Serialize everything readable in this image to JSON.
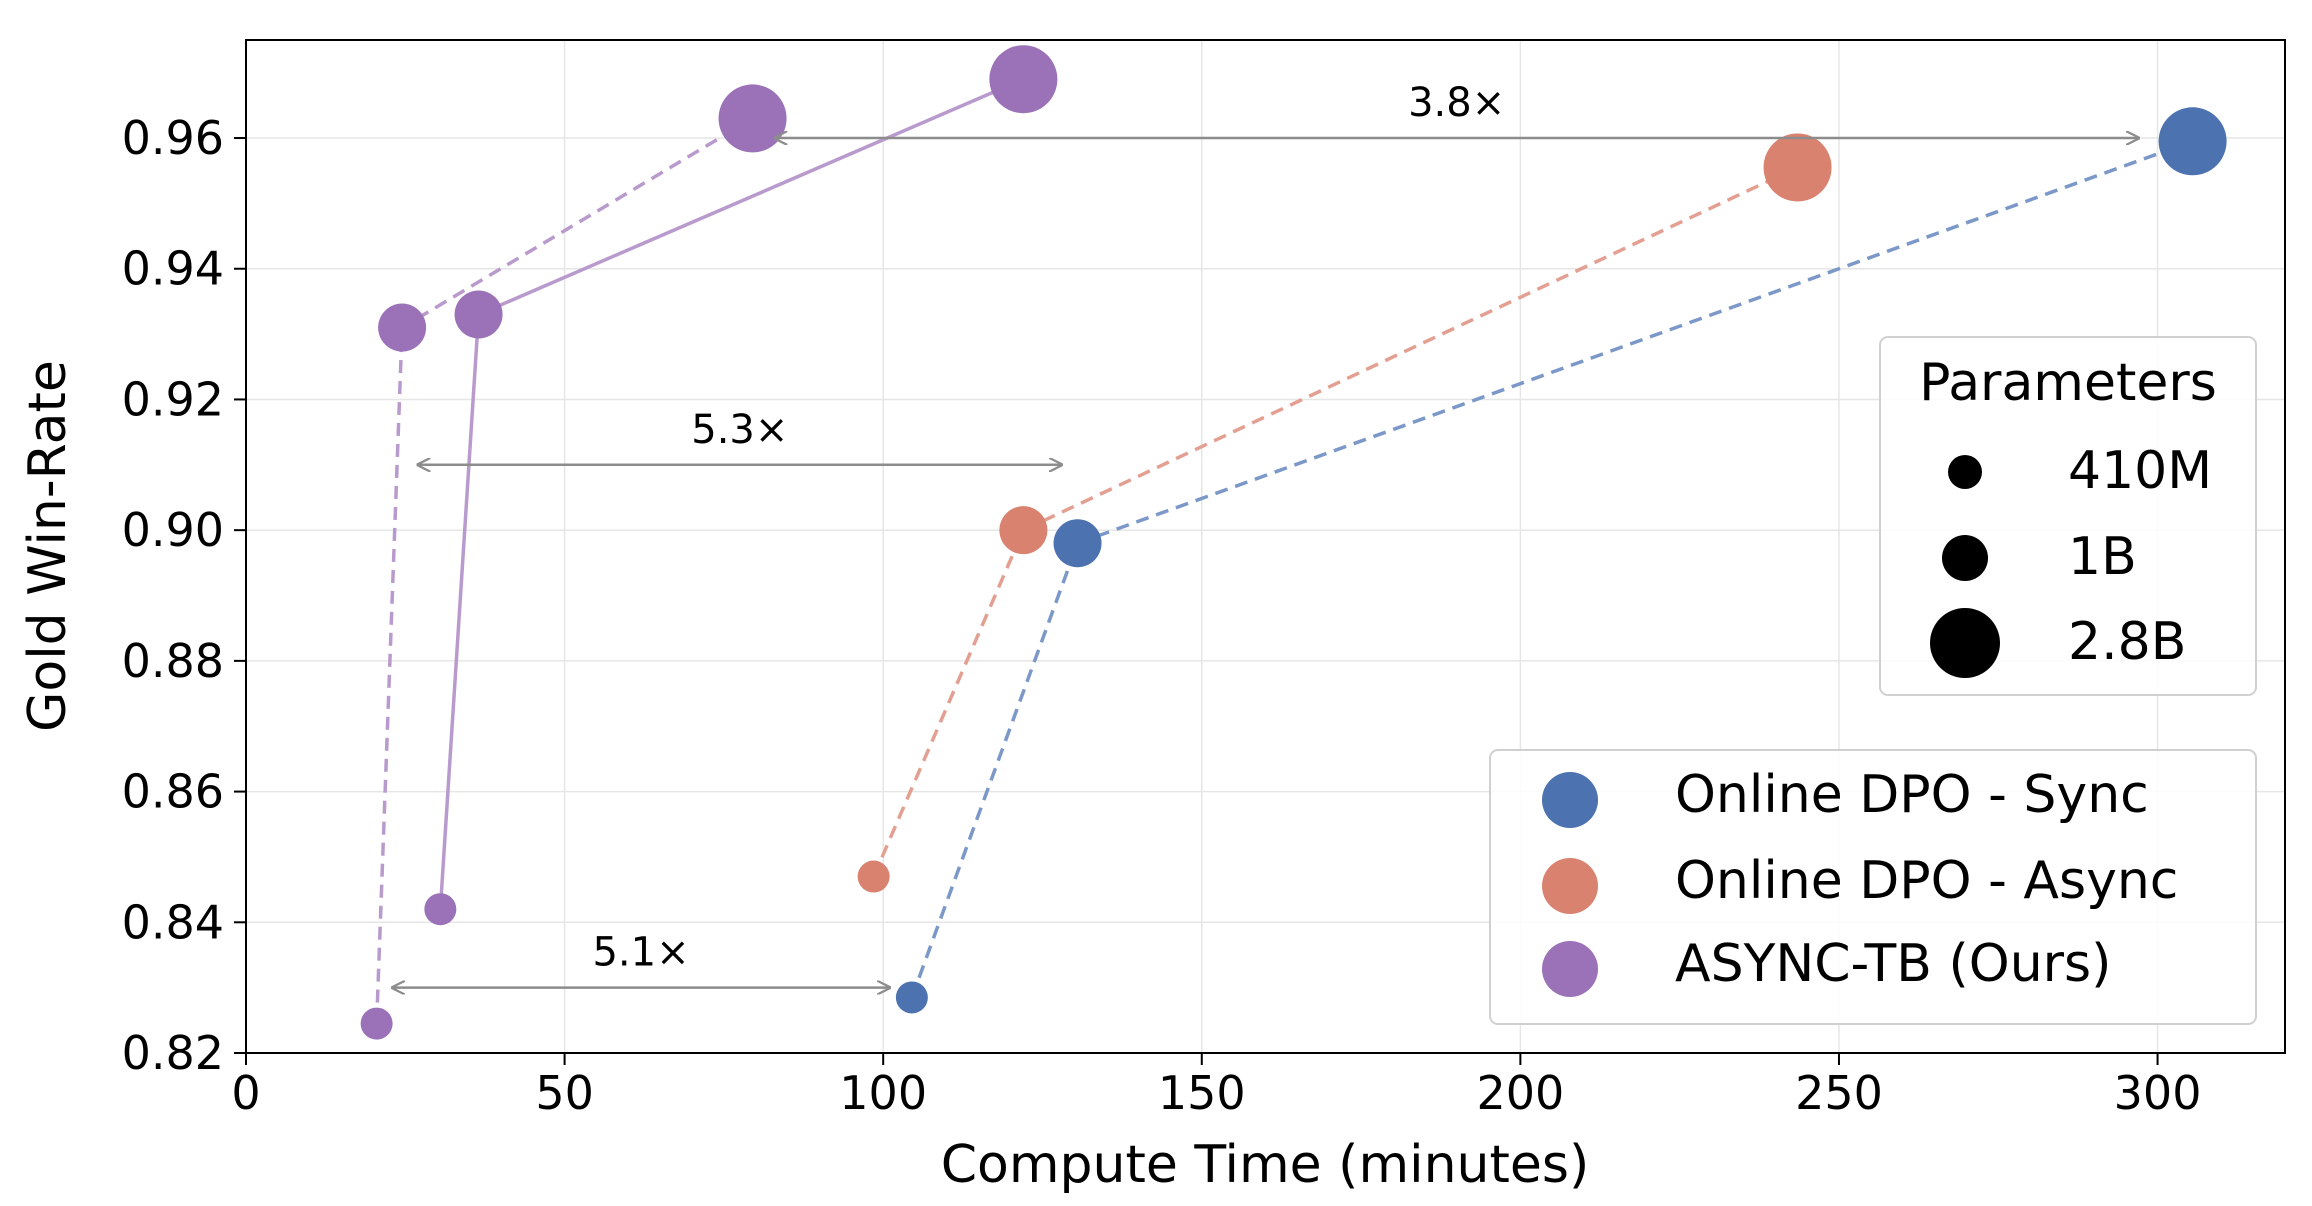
{
  "chart_data": {
    "type": "scatter",
    "title": "",
    "xlabel": "Compute Time (minutes)",
    "ylabel": "Gold Win-Rate",
    "xlim": [
      0,
      320
    ],
    "ylim": [
      0.82,
      0.975
    ],
    "xticks": [
      0,
      50,
      100,
      150,
      200,
      250,
      300
    ],
    "xtick_labels": [
      "0",
      "50",
      "100",
      "150",
      "200",
      "250",
      "300"
    ],
    "yticks": [
      0.82,
      0.84,
      0.86,
      0.88,
      0.9,
      0.92,
      0.94,
      0.96
    ],
    "ytick_labels": [
      "0.82",
      "0.84",
      "0.86",
      "0.88",
      "0.90",
      "0.92",
      "0.94",
      "0.96"
    ],
    "grid": true,
    "size_legend": {
      "title": "Parameters",
      "placement": "right",
      "entries": [
        {
          "label": "410M",
          "size": "410M"
        },
        {
          "label": "1B",
          "size": "1B"
        },
        {
          "label": "2.8B",
          "size": "2.8B"
        }
      ]
    },
    "series_legend_placement": "lower-right",
    "series": [
      {
        "name": "Online DPO - Sync",
        "color": "#4c72b0",
        "line_style": "dashed",
        "points": [
          {
            "x": 104.5,
            "y": 0.8285,
            "size": "410M"
          },
          {
            "x": 130.5,
            "y": 0.898,
            "size": "1B"
          },
          {
            "x": 305.5,
            "y": 0.9595,
            "size": "2.8B"
          }
        ]
      },
      {
        "name": "Online DPO - Async",
        "color": "#dd8452",
        "line_style": "dashed",
        "points": [
          {
            "x": 98.5,
            "y": 0.847,
            "size": "410M"
          },
          {
            "x": 122,
            "y": 0.9,
            "size": "1B"
          },
          {
            "x": 243.5,
            "y": 0.9555,
            "size": "2.8B"
          }
        ]
      },
      {
        "name": "ASYNC-TB (Ours)",
        "color": "#9b72b8",
        "line_style": "dashed",
        "points": [
          {
            "x": 20.5,
            "y": 0.8245,
            "size": "410M"
          },
          {
            "x": 24.5,
            "y": 0.931,
            "size": "1B"
          },
          {
            "x": 79.5,
            "y": 0.963,
            "size": "2.8B"
          }
        ]
      },
      {
        "name": "",
        "color": "#9b72b8",
        "line_style": "solid",
        "points": [
          {
            "x": 30.5,
            "y": 0.842,
            "size": "410M"
          },
          {
            "x": 36.5,
            "y": 0.933,
            "size": "1B"
          },
          {
            "x": 122,
            "y": 0.969,
            "size": "2.8B"
          }
        ]
      }
    ],
    "annotations": [
      {
        "text": "3.8×",
        "x_from": 83,
        "x_to": 297,
        "y": 0.96
      },
      {
        "text": "5.3×",
        "x_from": 27,
        "x_to": 128,
        "y": 0.91
      },
      {
        "text": "5.1×",
        "x_from": 23,
        "x_to": 101,
        "y": 0.83
      }
    ]
  }
}
